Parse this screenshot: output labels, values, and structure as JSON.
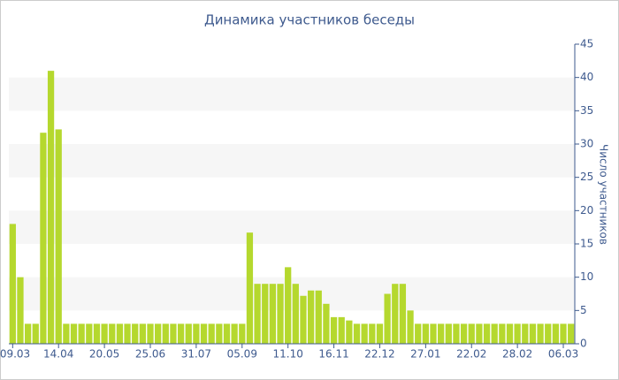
{
  "chart_data": {
    "type": "bar",
    "title": "Динамика участников беседы",
    "y_label": "Число участников",
    "categories": [
      "09.03",
      null,
      null,
      null,
      null,
      null,
      "14.04",
      null,
      null,
      null,
      null,
      null,
      "20.05",
      null,
      null,
      null,
      null,
      null,
      "25.06",
      null,
      null,
      null,
      null,
      null,
      "31.07",
      null,
      null,
      null,
      null,
      null,
      "05.09",
      null,
      null,
      null,
      null,
      null,
      "11.10",
      null,
      null,
      null,
      null,
      null,
      "16.11",
      null,
      null,
      null,
      null,
      null,
      "22.12",
      null,
      null,
      null,
      null,
      null,
      "27.01",
      null,
      null,
      null,
      null,
      null,
      "22.02",
      null,
      null,
      null,
      null,
      null,
      "28.02",
      null,
      null,
      null,
      null,
      null,
      "06.03",
      null
    ],
    "values": [
      18,
      10,
      3,
      3,
      31.7,
      41,
      32.2,
      3,
      3,
      3,
      3,
      3,
      3,
      3,
      3,
      3,
      3,
      3,
      3,
      3,
      3,
      3,
      3,
      3,
      3,
      3,
      3,
      3,
      3,
      3,
      3,
      16.7,
      9,
      9,
      9,
      9,
      11.5,
      9,
      7.2,
      8,
      8,
      6,
      4,
      4,
      3.5,
      3,
      3,
      3,
      3,
      7.5,
      9,
      9,
      5,
      3,
      3,
      3,
      3,
      3,
      3,
      3,
      3,
      3,
      3,
      3,
      3,
      3,
      3,
      3,
      3,
      3,
      3,
      3,
      3,
      3
    ],
    "color": "#b5d82e",
    "ylim": [
      0,
      45
    ],
    "yticks": [
      0,
      5,
      10,
      15,
      20,
      25,
      30,
      35,
      40,
      45
    ],
    "grid": true
  }
}
